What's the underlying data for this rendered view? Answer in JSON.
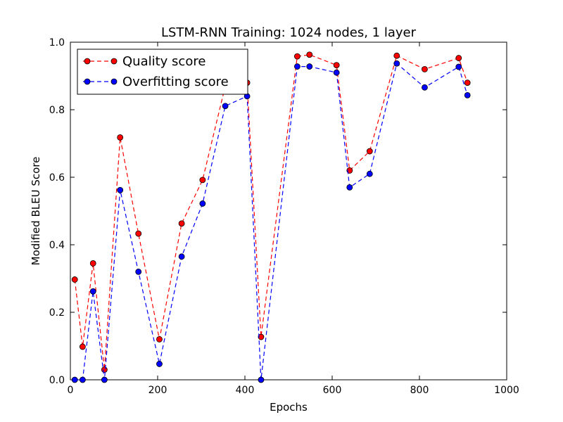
{
  "chart_data": {
    "type": "line",
    "title": "LSTM-RNN Training: 1024 nodes, 1 layer",
    "xlabel": "Epochs",
    "ylabel": "Modified BLEU Score",
    "xlim": [
      0,
      1000
    ],
    "ylim": [
      0.0,
      1.0
    ],
    "xticks": [
      0,
      200,
      400,
      600,
      800,
      1000
    ],
    "xtick_labels": [
      "0",
      "200",
      "400",
      "600",
      "800",
      "1000"
    ],
    "yticks": [
      0.0,
      0.2,
      0.4,
      0.6,
      0.8,
      1.0
    ],
    "ytick_labels": [
      "0.0",
      "0.2",
      "0.4",
      "0.6",
      "0.8",
      "1.0"
    ],
    "grid": false,
    "legend_position": "top-left",
    "series": [
      {
        "name": "Quality score",
        "color": "#ff0000",
        "line_style": "dashed",
        "marker": "circle",
        "x": [
          10,
          28,
          52,
          78,
          114,
          156,
          204,
          255,
          303,
          355,
          405,
          437,
          520,
          548,
          610,
          640,
          686,
          748,
          812,
          890,
          910
        ],
        "y": [
          0.297,
          0.098,
          0.345,
          0.03,
          0.718,
          0.433,
          0.12,
          0.463,
          0.592,
          0.87,
          0.88,
          0.127,
          0.958,
          0.963,
          0.932,
          0.62,
          0.677,
          0.96,
          0.92,
          0.953,
          0.88
        ]
      },
      {
        "name": "Overfitting score",
        "color": "#0000ff",
        "line_style": "dashed",
        "marker": "circle",
        "x": [
          10,
          28,
          52,
          78,
          114,
          156,
          204,
          255,
          303,
          355,
          405,
          437,
          520,
          548,
          610,
          640,
          686,
          748,
          812,
          890,
          910
        ],
        "y": [
          0.0,
          0.0,
          0.262,
          0.0,
          0.562,
          0.32,
          0.047,
          0.365,
          0.522,
          0.811,
          0.84,
          0.0,
          0.928,
          0.928,
          0.91,
          0.57,
          0.61,
          0.937,
          0.866,
          0.927,
          0.843
        ]
      }
    ]
  }
}
